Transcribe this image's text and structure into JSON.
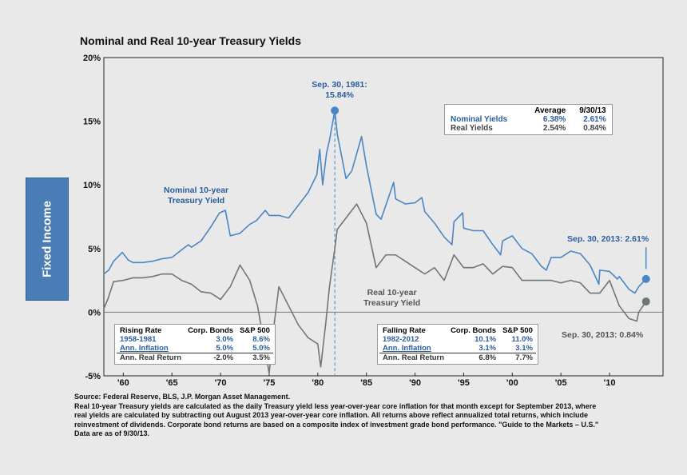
{
  "sidebar": {
    "label": "Fixed Income",
    "color": "#4a7db5"
  },
  "chart_data": {
    "type": "line",
    "title": "Nominal and Real 10-year Treasury Yields",
    "xlim": [
      1958,
      2015.5
    ],
    "ylim": [
      -5,
      20
    ],
    "yticks": [
      "-5%",
      "0%",
      "5%",
      "10%",
      "15%",
      "20%"
    ],
    "ytick_values": [
      -5,
      0,
      5,
      10,
      15,
      20
    ],
    "xticks": [
      "'60",
      "'65",
      "'70",
      "'75",
      "'80",
      "'85",
      "'90",
      "'95",
      "'00",
      "'05",
      "'10"
    ],
    "xtick_values": [
      1960,
      1965,
      1970,
      1975,
      1980,
      1985,
      1990,
      1995,
      2000,
      2005,
      2010
    ],
    "series": [
      {
        "name": "Nominal 10-year Treasury Yield",
        "color": "#4a86c5",
        "x": [
          1958,
          1958.5,
          1959,
          1959.9,
          1960.5,
          1961,
          1962,
          1963,
          1964,
          1965,
          1966,
          1966.7,
          1967,
          1968,
          1969,
          1969.9,
          1970.5,
          1971,
          1972,
          1973,
          1973.7,
          1974.6,
          1975,
          1976,
          1977,
          1978,
          1979,
          1979.9,
          1980.2,
          1980.5,
          1980.9,
          1981.2,
          1981.75,
          1982,
          1982.9,
          1983.5,
          1984.5,
          1985,
          1986,
          1986.5,
          1987,
          1987.8,
          1988,
          1989,
          1990,
          1990.7,
          1991,
          1992,
          1993,
          1993.8,
          1994,
          1994.9,
          1995,
          1996,
          1997,
          1998,
          1998.8,
          1999,
          2000,
          2001,
          2002,
          2003,
          2003.5,
          2004,
          2005,
          2006,
          2007,
          2008,
          2008.9,
          2009,
          2010,
          2010.8,
          2011,
          2012,
          2012.6,
          2013,
          2013.75
        ],
        "y": [
          3.0,
          3.3,
          4.0,
          4.7,
          4.1,
          3.9,
          3.9,
          4.0,
          4.2,
          4.3,
          4.9,
          5.3,
          5.1,
          5.6,
          6.7,
          7.8,
          8.0,
          6.0,
          6.2,
          6.9,
          7.2,
          8.0,
          7.6,
          7.6,
          7.4,
          8.4,
          9.4,
          10.8,
          12.8,
          10.0,
          12.5,
          13.5,
          15.84,
          14.0,
          10.5,
          11.1,
          13.8,
          11.5,
          7.7,
          7.3,
          8.4,
          10.2,
          8.9,
          8.5,
          8.6,
          9.0,
          7.9,
          7.0,
          5.9,
          5.3,
          7.1,
          7.8,
          6.6,
          6.4,
          6.4,
          5.3,
          4.5,
          5.6,
          6.0,
          5.0,
          4.6,
          3.6,
          3.3,
          4.3,
          4.3,
          4.8,
          4.6,
          3.7,
          2.2,
          3.3,
          3.2,
          2.6,
          2.8,
          1.8,
          1.5,
          2.0,
          2.61
        ]
      },
      {
        "name": "Real 10-year Treasury Yield",
        "color": "#6f7775",
        "x": [
          1958,
          1958.4,
          1959,
          1960,
          1961,
          1962,
          1963,
          1964,
          1965,
          1966,
          1967,
          1968,
          1969,
          1970,
          1971,
          1972,
          1973,
          1973.8,
          1974.5,
          1975,
          1975.5,
          1976,
          1977,
          1978,
          1979,
          1980,
          1980.3,
          1980.8,
          1981.2,
          1981.75,
          1982,
          1983,
          1984,
          1985,
          1986,
          1987,
          1988,
          1989,
          1990,
          1991,
          1992,
          1993,
          1994,
          1995,
          1996,
          1997,
          1998,
          1999,
          2000,
          2001,
          2002,
          2003,
          2004,
          2005,
          2006,
          2007,
          2008,
          2009,
          2010,
          2011,
          2012,
          2012.8,
          2013,
          2013.75
        ],
        "y": [
          0.3,
          1.0,
          2.4,
          2.5,
          2.7,
          2.7,
          2.8,
          3.0,
          3.0,
          2.5,
          2.2,
          1.6,
          1.5,
          1.0,
          2.0,
          3.7,
          2.5,
          0.5,
          -2.5,
          -4.8,
          -1.0,
          2.0,
          0.5,
          -1.0,
          -2.0,
          -2.5,
          -4.3,
          -1.0,
          2.0,
          5.0,
          6.5,
          7.5,
          8.5,
          7.0,
          3.5,
          4.5,
          4.5,
          4.0,
          3.5,
          3.0,
          3.5,
          2.5,
          4.5,
          3.5,
          3.5,
          3.8,
          3.0,
          3.6,
          3.5,
          2.5,
          2.5,
          2.5,
          2.5,
          2.3,
          2.5,
          2.3,
          1.5,
          1.5,
          2.5,
          0.5,
          -0.5,
          -0.7,
          0.0,
          0.84
        ]
      }
    ],
    "annotations": {
      "peak": "Sep. 30, 1981: 15.84%",
      "nominal_label": [
        "Nominal 10-year",
        "Treasury Yield"
      ],
      "real_label": [
        "Real 10-year",
        "Treasury Yield"
      ],
      "end_nominal": "Sep. 30, 2013: 2.61%",
      "end_real": "Sep. 30, 2013: 0.84%"
    },
    "summary_table": {
      "headers": [
        "",
        "Average",
        "9/30/13"
      ],
      "rows": [
        [
          "Nominal Yields",
          "6.38%",
          "2.61%"
        ],
        [
          "Real Yields",
          "2.54%",
          "0.84%"
        ]
      ]
    },
    "rising_table": {
      "headers": [
        "Rising Rate",
        "Corp. Bonds",
        "S&P 500"
      ],
      "rows": [
        [
          "1958-1981",
          "3.0%",
          "8.6%"
        ],
        [
          "Ann. Inflation",
          "5.0%",
          "5.0%"
        ],
        [
          "Ann. Real Return",
          "-2.0%",
          "3.5%"
        ]
      ]
    },
    "falling_table": {
      "headers": [
        "Falling Rate",
        "Corp. Bonds",
        "S&P 500"
      ],
      "rows": [
        [
          "1982-2012",
          "10.1%",
          "11.0%"
        ],
        [
          "Ann. Inflation",
          "3.1%",
          "3.1%"
        ],
        [
          "Ann. Real Return",
          "6.8%",
          "7.7%"
        ]
      ]
    }
  },
  "footer": [
    "Source: Federal Reserve, BLS, J.P. Morgan Asset Management.",
    "Real 10-year Treasury yields are calculated as the daily Treasury yield less year-over-year core inflation for that month except for September 2013, where real yields are calculated by subtracting out August 2013 year-over-year core inflation. All returns above reflect annualized total returns, which include reinvestment of dividends. Corporate bond returns are based on a composite index of investment grade bond performance. \"Guide to the Markets – U.S.\"",
    "Data are as of 9/30/13."
  ]
}
